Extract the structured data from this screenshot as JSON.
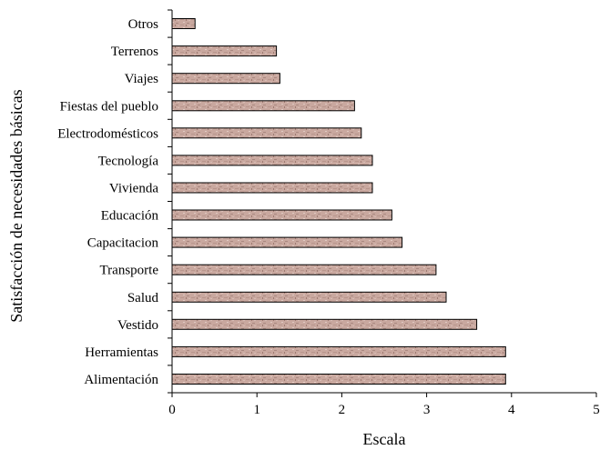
{
  "chart_data": {
    "type": "bar",
    "orientation": "horizontal",
    "categories": [
      "Otros",
      "Terrenos",
      "Viajes",
      "Fiestas del pueblo",
      "Electrodomésticos",
      "Tecnología",
      "Vivienda",
      "Educación",
      "Capacitacion",
      "Transporte",
      "Salud",
      "Vestido",
      "Herramientas",
      "Alimentación"
    ],
    "values": [
      0.27,
      1.23,
      1.27,
      2.15,
      2.23,
      2.36,
      2.36,
      2.59,
      2.71,
      3.11,
      3.23,
      3.59,
      3.93,
      3.93
    ],
    "title": "",
    "xlabel": "Escala",
    "ylabel": "Satisfacción de necesidades básicas",
    "xlim": [
      0,
      5
    ],
    "xticks": [
      0,
      1,
      2,
      3,
      4,
      5
    ],
    "grid": false,
    "legend": "none",
    "bar_color": "#c9a89f",
    "bar_texture_color": "#9e7b72",
    "bar_outline_color": "#000000"
  }
}
